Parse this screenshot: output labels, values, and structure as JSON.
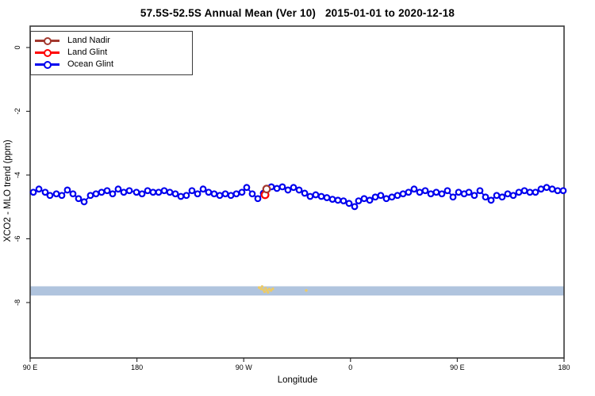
{
  "title": "57.5S-52.5S Annual Mean (Ver 10)   2015-01-01 to 2020-12-18",
  "legend": {
    "items": [
      {
        "label": "Land Nadir",
        "color": "#A3392F"
      },
      {
        "label": "Land Glint",
        "color": "#FF0000"
      },
      {
        "label": "Ocean Glint",
        "color": "#0000EE"
      }
    ]
  },
  "chart_data": {
    "type": "line",
    "title": "57.5S-52.5S Annual Mean (Ver 10)   2015-01-01 to 2020-12-18",
    "xlabel": "Longitude",
    "ylabel": "XCO2 - MLO trend (ppm)",
    "x_axis": {
      "range_deg": [
        0,
        450
      ],
      "ticks_deg": [
        0,
        90,
        180,
        270,
        360,
        450
      ],
      "tick_labels": [
        "90 E",
        "180",
        "90 W",
        "0",
        "90 E",
        "180"
      ]
    },
    "y_axis": {
      "range": [
        -9.7,
        0.67
      ],
      "ticks": [
        0,
        -2,
        -4,
        -6,
        -8
      ],
      "tick_labels": [
        "0",
        "-2",
        "-4",
        "-6",
        "-8"
      ],
      "grid": false
    },
    "band": {
      "y_from": -7.49,
      "y_to": -7.78,
      "color": "#B0C4DE"
    },
    "small_scatter": {
      "color": "#EDCB66",
      "points": [
        [
          193.0,
          -7.53
        ],
        [
          194.5,
          -7.57
        ],
        [
          195.5,
          -7.5
        ],
        [
          196.5,
          -7.6
        ],
        [
          197.5,
          -7.66
        ],
        [
          198.5,
          -7.55
        ],
        [
          199.5,
          -7.62
        ],
        [
          200.5,
          -7.68
        ],
        [
          201.5,
          -7.58
        ],
        [
          203.0,
          -7.62
        ],
        [
          204.5,
          -7.57
        ],
        [
          232.7,
          -7.62
        ]
      ]
    },
    "series": [
      {
        "name": "Land Nadir",
        "color": "#A3392F",
        "marker_radius": 4.3,
        "line_width": 0,
        "x": [
          199.3
        ],
        "y": [
          -4.44
        ]
      },
      {
        "name": "Land Glint",
        "color": "#FF0000",
        "marker_radius": 4.3,
        "line_width": 0,
        "x": [
          198.0
        ],
        "y": [
          -4.62
        ]
      },
      {
        "name": "Ocean Glint",
        "color": "#0000EE",
        "marker_radius": 3.3,
        "line_width": 1.8,
        "x": [
          2.7,
          7.4,
          12.7,
          16.7,
          22.1,
          26.7,
          31.4,
          36.1,
          40.8,
          45.5,
          50.8,
          55.5,
          60.2,
          64.9,
          69.5,
          74.2,
          78.9,
          83.6,
          89.6,
          94.3,
          99.0,
          103.6,
          108.3,
          113.0,
          117.7,
          122.4,
          127.0,
          131.7,
          136.4,
          141.1,
          145.8,
          150.4,
          155.1,
          159.8,
          164.5,
          169.2,
          173.8,
          178.5,
          182.5,
          187.2,
          191.9,
          196.6,
          203.3,
          208.0,
          212.6,
          217.3,
          222.0,
          226.7,
          231.4,
          236.0,
          240.7,
          245.4,
          250.1,
          254.8,
          259.4,
          264.1,
          268.8,
          273.5,
          276.8,
          281.5,
          286.2,
          290.9,
          295.5,
          300.2,
          304.9,
          309.6,
          314.3,
          318.9,
          323.6,
          328.3,
          333.0,
          337.7,
          342.3,
          347.0,
          351.7,
          356.4,
          361.1,
          365.8,
          369.8,
          374.4,
          379.1,
          383.8,
          388.5,
          393.2,
          397.8,
          402.5,
          407.2,
          411.9,
          416.6,
          421.2,
          425.9,
          430.6,
          435.3,
          440.0,
          444.6,
          449.3
        ],
        "y": [
          -4.54,
          -4.44,
          -4.54,
          -4.64,
          -4.59,
          -4.64,
          -4.47,
          -4.59,
          -4.74,
          -4.84,
          -4.64,
          -4.59,
          -4.54,
          -4.49,
          -4.59,
          -4.44,
          -4.54,
          -4.49,
          -4.54,
          -4.59,
          -4.49,
          -4.54,
          -4.54,
          -4.49,
          -4.54,
          -4.59,
          -4.67,
          -4.64,
          -4.49,
          -4.59,
          -4.44,
          -4.54,
          -4.59,
          -4.64,
          -4.59,
          -4.64,
          -4.59,
          -4.54,
          -4.39,
          -4.59,
          -4.74,
          -4.57,
          -4.37,
          -4.42,
          -4.37,
          -4.47,
          -4.39,
          -4.47,
          -4.57,
          -4.67,
          -4.62,
          -4.67,
          -4.71,
          -4.76,
          -4.79,
          -4.81,
          -4.89,
          -4.99,
          -4.81,
          -4.74,
          -4.79,
          -4.69,
          -4.64,
          -4.74,
          -4.69,
          -4.64,
          -4.59,
          -4.54,
          -4.44,
          -4.54,
          -4.49,
          -4.59,
          -4.54,
          -4.59,
          -4.49,
          -4.69,
          -4.54,
          -4.59,
          -4.54,
          -4.64,
          -4.49,
          -4.69,
          -4.79,
          -4.64,
          -4.69,
          -4.59,
          -4.64,
          -4.54,
          -4.49,
          -4.54,
          -4.54,
          -4.44,
          -4.39,
          -4.44,
          -4.49,
          -4.49
        ]
      }
    ],
    "frame_color": "#3a3a3a"
  }
}
